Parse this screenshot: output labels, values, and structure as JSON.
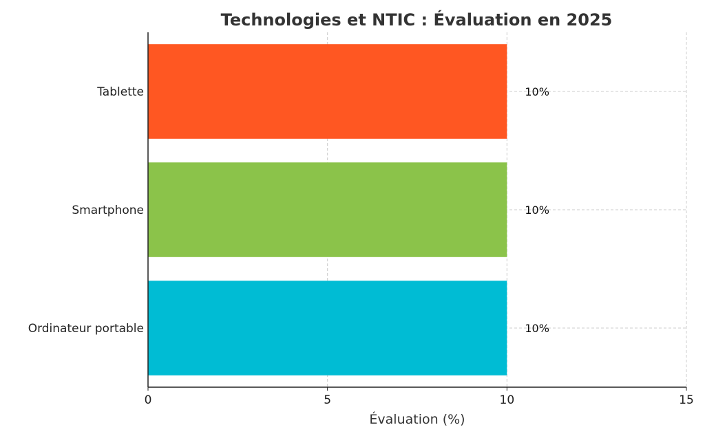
{
  "chart_data": {
    "type": "bar",
    "orientation": "horizontal",
    "title": "Technologies et NTIC : Évaluation en 2025",
    "xlabel": "Évaluation (%)",
    "ylabel": "",
    "xlim": [
      0,
      15
    ],
    "xticks": [
      0,
      5,
      10,
      15
    ],
    "grid": true,
    "categories": [
      "Ordinateur portable",
      "Smartphone",
      "Tablette"
    ],
    "values": [
      10,
      10,
      10
    ],
    "data_labels": [
      "10%",
      "10%",
      "10%"
    ],
    "colors": [
      "#00BCD4",
      "#8BC34A",
      "#FF5722"
    ]
  }
}
